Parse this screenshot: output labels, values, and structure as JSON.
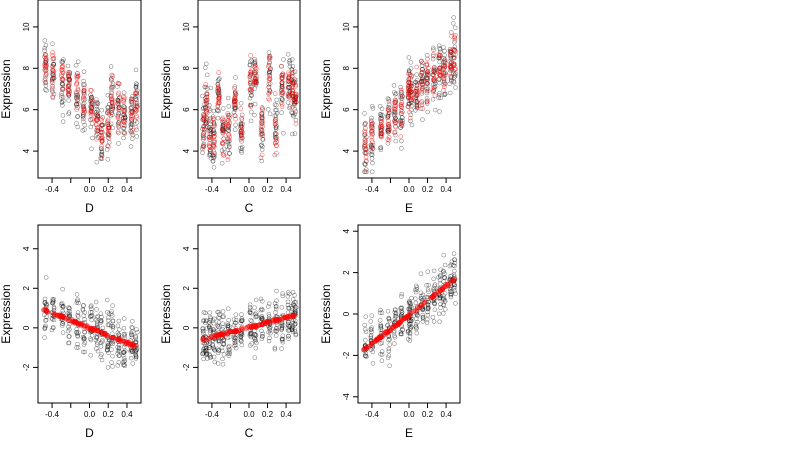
{
  "figure": {
    "ylabel": "Expression"
  },
  "chart_data": [
    {
      "type": "scatter",
      "xlabel": "D",
      "ylabel": "Expression",
      "xticks": [
        "-0.4",
        "0.0",
        "0.2",
        "0.4"
      ],
      "yticks": [
        "4",
        "6",
        "8",
        "10"
      ],
      "xlim": [
        -0.55,
        0.55
      ],
      "ylim": [
        2.7,
        11.3
      ],
      "grid": false,
      "series": [
        {
          "color": "#000000",
          "x_levels": [
            -0.47,
            -0.39,
            -0.29,
            -0.22,
            -0.13,
            -0.06,
            0.02,
            0.08,
            0.13,
            0.2,
            0.24,
            0.31,
            0.37,
            0.45,
            0.5
          ],
          "y_pattern": "scatter",
          "y_range": [
            3.3,
            11.0
          ]
        },
        {
          "color": "#ff0000",
          "x_levels": [
            -0.47,
            -0.39,
            -0.29,
            -0.22,
            -0.13,
            -0.06,
            0.02,
            0.08,
            0.13,
            0.2,
            0.24,
            0.31,
            0.37,
            0.45,
            0.5
          ],
          "y_centers": [
            8.0,
            7.6,
            7.3,
            7.0,
            6.6,
            6.4,
            6.0,
            5.6,
            4.8,
            5.2,
            6.5,
            6.0,
            5.7,
            5.6,
            6.3
          ]
        }
      ]
    },
    {
      "type": "scatter",
      "xlabel": "C",
      "ylabel": "Expression",
      "xticks": [
        "-0.4",
        "0.0",
        "0.2",
        "0.4"
      ],
      "yticks": [
        "4",
        "6",
        "8",
        "10"
      ],
      "xlim": [
        -0.55,
        0.55
      ],
      "ylim": [
        2.7,
        11.3
      ],
      "grid": false,
      "series": [
        {
          "color": "#000000",
          "x_levels": [
            -0.49,
            -0.46,
            -0.42,
            -0.38,
            -0.33,
            -0.28,
            -0.22,
            -0.15,
            -0.08,
            0.02,
            0.07,
            0.14,
            0.22,
            0.29,
            0.36,
            0.43,
            0.47,
            0.5
          ],
          "y_pattern": "scatter",
          "y_range": [
            3.2,
            11.1
          ]
        },
        {
          "color": "#ff0000",
          "x_levels": [
            -0.49,
            -0.46,
            -0.42,
            -0.38,
            -0.33,
            -0.28,
            -0.22,
            -0.15,
            -0.08,
            0.02,
            0.07,
            0.14,
            0.22,
            0.29,
            0.36,
            0.43,
            0.47,
            0.5
          ],
          "y_centers": [
            5.5,
            6.2,
            5.0,
            4.8,
            6.8,
            4.8,
            5.0,
            6.2,
            4.9,
            7.1,
            7.4,
            5.1,
            7.6,
            5.1,
            7.0,
            7.2,
            7.0,
            6.5
          ]
        }
      ]
    },
    {
      "type": "scatter",
      "xlabel": "E",
      "ylabel": "Expression",
      "xticks": [
        "-0.4",
        "0.0",
        "0.2",
        "0.4"
      ],
      "yticks": [
        "4",
        "6",
        "8",
        "10"
      ],
      "xlim": [
        -0.55,
        0.55
      ],
      "ylim": [
        2.7,
        11.3
      ],
      "grid": false,
      "series": [
        {
          "color": "#000000",
          "x_levels": [
            -0.47,
            -0.4,
            -0.3,
            -0.22,
            -0.15,
            -0.08,
            0.0,
            0.02,
            0.08,
            0.14,
            0.2,
            0.27,
            0.33,
            0.38,
            0.45,
            0.49
          ],
          "y_pattern": "scatter",
          "y_range": [
            3.0,
            11.0
          ]
        },
        {
          "color": "#ff0000",
          "x_levels": [
            -0.47,
            -0.4,
            -0.3,
            -0.22,
            -0.15,
            -0.08,
            0.0,
            0.02,
            0.08,
            0.14,
            0.2,
            0.27,
            0.33,
            0.38,
            0.45,
            0.49
          ],
          "y_centers": [
            4.3,
            4.7,
            5.1,
            5.4,
            5.8,
            6.1,
            6.8,
            6.8,
            6.9,
            7.2,
            7.4,
            7.7,
            7.9,
            7.9,
            8.2,
            8.6
          ]
        }
      ]
    },
    {
      "type": "scatter",
      "xlabel": "D",
      "ylabel": "Expression",
      "xticks": [
        "-0.4",
        "0.0",
        "0.2",
        "0.4"
      ],
      "yticks": [
        "-2",
        "0",
        "2",
        "4"
      ],
      "xlim": [
        -0.55,
        0.55
      ],
      "ylim": [
        -3.8,
        5.2
      ],
      "grid": false,
      "series": [
        {
          "color": "#000000",
          "x_levels": [
            -0.47,
            -0.39,
            -0.29,
            -0.22,
            -0.13,
            -0.06,
            0.02,
            0.08,
            0.13,
            0.2,
            0.24,
            0.31,
            0.37,
            0.45,
            0.5
          ],
          "y_pattern": "scatter",
          "y_range": [
            -3.0,
            4.6
          ]
        },
        {
          "color": "#ff0000",
          "x_levels": [
            -0.47,
            -0.39,
            -0.29,
            -0.22,
            -0.13,
            -0.06,
            0.02,
            0.08,
            0.13,
            0.2,
            0.24,
            0.31,
            0.37,
            0.45,
            0.5
          ],
          "fit_line": [
            [
              -0.5,
              0.95
            ],
            [
              0.5,
              -0.95
            ]
          ]
        }
      ]
    },
    {
      "type": "scatter",
      "xlabel": "C",
      "ylabel": "Expression",
      "xticks": [
        "-0.4",
        "0.0",
        "0.2",
        "0.4"
      ],
      "yticks": [
        "-2",
        "0",
        "2",
        "4"
      ],
      "xlim": [
        -0.55,
        0.55
      ],
      "ylim": [
        -3.8,
        5.2
      ],
      "grid": false,
      "series": [
        {
          "color": "#000000",
          "x_levels": [
            -0.49,
            -0.46,
            -0.42,
            -0.38,
            -0.33,
            -0.28,
            -0.22,
            -0.15,
            -0.08,
            0.02,
            0.07,
            0.14,
            0.22,
            0.29,
            0.36,
            0.43,
            0.47,
            0.5
          ],
          "y_pattern": "scatter",
          "y_range": [
            -3.0,
            4.6
          ]
        },
        {
          "color": "#ff0000",
          "x_levels": [
            -0.49,
            -0.46,
            -0.42,
            -0.38,
            -0.33,
            -0.28,
            -0.22,
            -0.15,
            -0.08,
            0.02,
            0.07,
            0.14,
            0.22,
            0.29,
            0.36,
            0.43,
            0.47,
            0.5
          ],
          "fit_line": [
            [
              -0.5,
              -0.6
            ],
            [
              0.5,
              0.65
            ]
          ]
        }
      ]
    },
    {
      "type": "scatter",
      "xlabel": "E",
      "ylabel": "Expression",
      "xticks": [
        "-0.4",
        "0.0",
        "0.2",
        "0.4"
      ],
      "yticks": [
        "-4",
        "-2",
        "0",
        "2",
        "4"
      ],
      "xlim": [
        -0.55,
        0.55
      ],
      "ylim": [
        -4.3,
        4.3
      ],
      "grid": false,
      "series": [
        {
          "color": "#000000",
          "x_levels": [
            -0.47,
            -0.4,
            -0.3,
            -0.22,
            -0.15,
            -0.08,
            0.0,
            0.02,
            0.08,
            0.14,
            0.2,
            0.27,
            0.33,
            0.38,
            0.45,
            0.49
          ],
          "y_pattern": "scatter",
          "y_range": [
            -4.0,
            3.9
          ]
        },
        {
          "color": "#ff0000",
          "x_levels": [
            -0.47,
            -0.4,
            -0.3,
            -0.22,
            -0.15,
            -0.08,
            0.0,
            0.02,
            0.08,
            0.14,
            0.2,
            0.27,
            0.33,
            0.38,
            0.45,
            0.49
          ],
          "fit_line": [
            [
              -0.5,
              -1.8
            ],
            [
              0.5,
              1.7
            ]
          ]
        }
      ]
    }
  ]
}
